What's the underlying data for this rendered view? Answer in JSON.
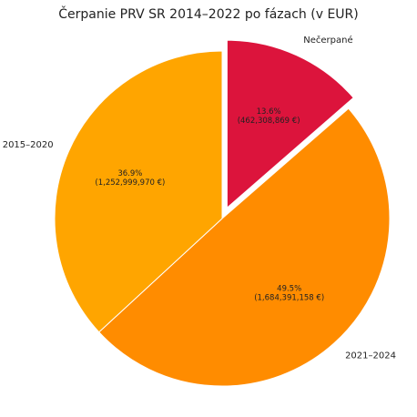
{
  "chart_data": {
    "type": "pie",
    "title": "Čerpanie PRV SR 2014–2022 po fázach (v EUR)",
    "categories": [
      "Nečerpané",
      "2021–2024",
      "2015–2020"
    ],
    "values": [
      462308869,
      1684391158,
      1252999970
    ],
    "percent_labels": [
      "13.6%",
      "49.5%",
      "36.9%"
    ],
    "value_labels": [
      "(462,308,869 €)",
      "(1,684,391,158 €)",
      "(1,252,999,970 €)"
    ],
    "colors": [
      "#dc143c",
      "#ff8c00",
      "#ffa500"
    ],
    "explode": [
      true,
      false,
      false
    ]
  }
}
